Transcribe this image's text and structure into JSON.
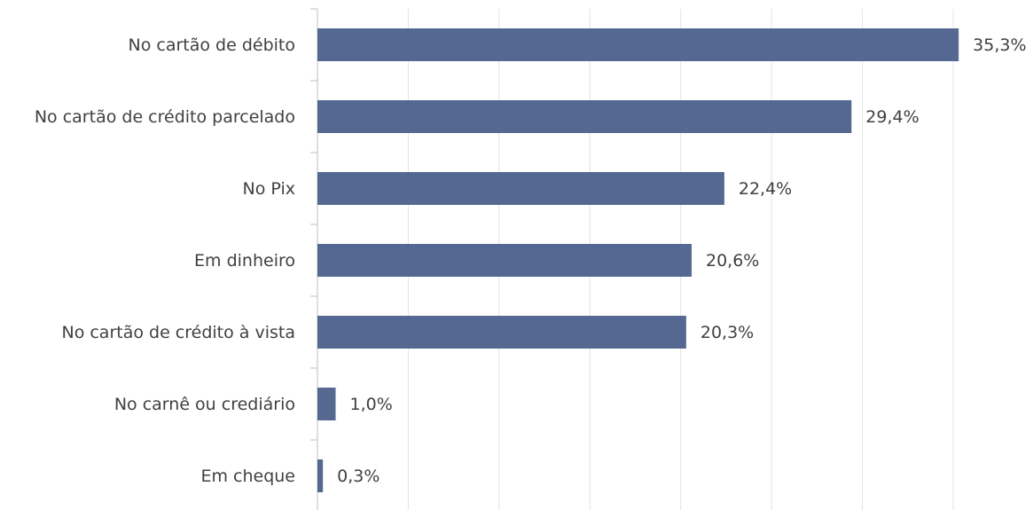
{
  "chart_data": {
    "type": "bar",
    "orientation": "horizontal",
    "categories": [
      "No cartão de débito",
      "No cartão de crédito parcelado",
      "No Pix",
      "Em dinheiro",
      "No cartão de crédito à vista",
      "No carnê ou crediário",
      "Em cheque"
    ],
    "values": [
      35.3,
      29.4,
      22.4,
      20.6,
      20.3,
      1.0,
      0.3
    ],
    "value_labels": [
      "35,3%",
      "29,4%",
      "22,4%",
      "20,6%",
      "20,3%",
      "1,0%",
      "0,3%"
    ],
    "color": "#556891",
    "xlim": [
      0,
      35
    ],
    "xticks": [
      0,
      5,
      10,
      15,
      20,
      25,
      30,
      35
    ],
    "grid": true
  }
}
